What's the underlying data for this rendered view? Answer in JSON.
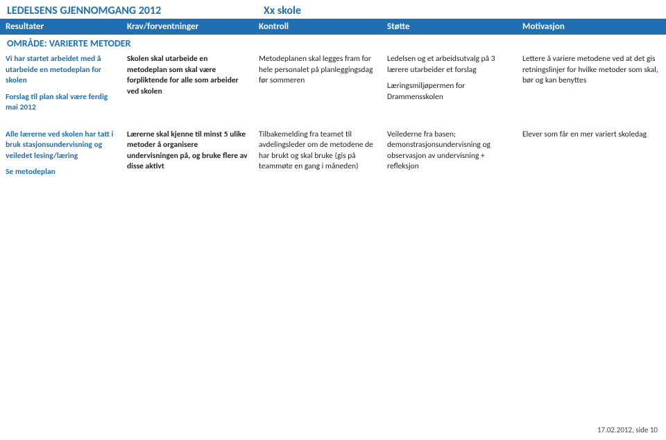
{
  "title": {
    "left": "LEDELSENS GJENNOMGANG 2012",
    "right": "Xx skole"
  },
  "headers": {
    "c1": "Resultater",
    "c2": "Krav/forventninger",
    "c3": "Kontroll",
    "c4": "Støtte",
    "c5": "Motivasjon"
  },
  "area": "OMRÅDE: VARIERTE METODER",
  "rows": [
    {
      "res_p1": "Vi har startet arbeidet med å utarbeide en metodeplan for skolen",
      "res_p2": "Forslag til plan skal være ferdig mai 2012",
      "krav": "Skolen skal utarbeide en metodeplan som skal være forpliktende for alle som arbeider ved skolen",
      "kontroll": "Metodeplanen skal legges fram for hele personalet på planleggingsdag før sommeren",
      "stotte_p1": "Ledelsen og et arbeidsutvalg på 3 lærere utarbeider et forslag",
      "stotte_p2": "Læringsmiljøpermen for Drammensskolen",
      "motiv": "Lettere å variere metodene ved at det gis retningslinjer for hvilke metoder som skal, bør og kan benyttes"
    },
    {
      "res_p1": "Alle lærerne ved skolen har tatt i bruk stasjonsundervisning og veiledet lesing/læring",
      "res_p2": "Se metodeplan",
      "krav": "Lærerne skal kjenne til minst 5 ulike metoder å organisere undervisningen på, og bruke flere av disse aktivt",
      "kontroll": "Tilbakemelding fra teamet til avdelingsleder om de metodene de har brukt og skal bruke (gis på teammøte en gang i måneden)",
      "stotte_p1": "Veilederne fra basen; demonstrasjonsundervisning og observasjon av undervisning + refleksjon",
      "stotte_p2": "",
      "motiv": "Elever som får en mer variert skoledag"
    }
  ],
  "footer": "17.02.2012, side 10"
}
